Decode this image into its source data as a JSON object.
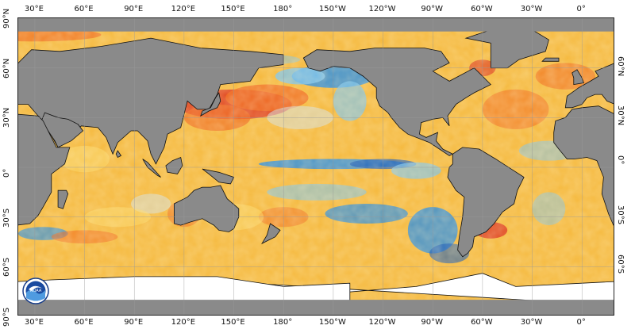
{
  "map": {
    "type": "sea-surface-temperature-anomaly",
    "colors": {
      "land": "#8a8a8a",
      "ice": "#ffffff",
      "ocean_neutral": "#e9e2c8",
      "warm_1": "#fcd96a",
      "warm_2": "#f8a830",
      "warm_3": "#f06a1f",
      "warm_4": "#d9281b",
      "cool_1": "#cfe3ef",
      "cool_2": "#7cc3ec",
      "cool_3": "#2a8cde",
      "cool_4": "#1457b8"
    },
    "logo": {
      "text": "NOAA",
      "icon": "noaa-logo-icon"
    }
  },
  "axes": {
    "longitude_top": [
      "30°E",
      "60°E",
      "90°E",
      "120°E",
      "150°E",
      "180°",
      "150°W",
      "120°W",
      "90°W",
      "60°W",
      "30°W",
      "0°"
    ],
    "longitude_bottom": [
      "30°E",
      "60°E",
      "90°E",
      "120°E",
      "150°E",
      "180°",
      "150°W",
      "120°W",
      "90°W",
      "60°W",
      "30°W",
      "0°"
    ],
    "latitude_left": [
      "90°N",
      "60°N",
      "30°N",
      "0°",
      "30°S",
      "60°S",
      "90°S"
    ],
    "latitude_right": [
      "60°N",
      "30°N",
      "0°",
      "30°S",
      "60°S"
    ]
  }
}
